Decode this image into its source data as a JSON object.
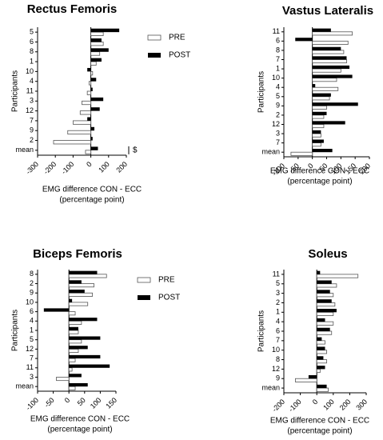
{
  "chart_data": [
    {
      "type": "hbar",
      "title": "Rectus Femoris",
      "ylabel": "Participants",
      "xlabel": [
        "EMG difference CON - ECC",
        "(percentage point)"
      ],
      "categories": [
        "5",
        "6",
        "8",
        "1",
        "10",
        "4",
        "11",
        "3",
        "12",
        "7",
        "9",
        "2",
        "mean"
      ],
      "series": [
        {
          "name": "PRE",
          "color": "#ffffff",
          "values": [
            70,
            70,
            50,
            30,
            10,
            -10,
            -20,
            -50,
            -60,
            -100,
            -130,
            -210,
            -30
          ]
        },
        {
          "name": "POST",
          "color": "#000000",
          "values": [
            160,
            60,
            100,
            60,
            -20,
            30,
            10,
            70,
            50,
            -20,
            20,
            10,
            40
          ]
        }
      ],
      "xlim": [
        -300,
        200
      ],
      "xticks": [
        -300,
        -200,
        -100,
        0,
        100,
        200
      ],
      "legend": "upper right",
      "annotation": "$"
    },
    {
      "type": "hbar",
      "title": "Vastus Lateralis",
      "ylabel": "Participants",
      "xlabel": [
        "EMG difference CON - ECC",
        "(percentage point)"
      ],
      "categories": [
        "11",
        "6",
        "8",
        "7",
        "1",
        "10",
        "4",
        "5",
        "9",
        "2",
        "12",
        "3",
        "7",
        "mean"
      ],
      "series": [
        {
          "name": "PRE",
          "color": "#ffffff",
          "values": [
            140,
            125,
            110,
            120,
            100,
            85,
            90,
            60,
            50,
            40,
            40,
            30,
            30,
            -75
          ]
        },
        {
          "name": "POST",
          "color": "#000000",
          "values": [
            65,
            -60,
            100,
            120,
            130,
            140,
            10,
            65,
            160,
            50,
            115,
            30,
            40,
            70
          ]
        }
      ],
      "xlim": [
        -100,
        200
      ],
      "xticks": [
        -100,
        -50,
        0,
        50,
        100,
        150,
        200
      ]
    },
    {
      "type": "hbar",
      "title": "Biceps Femoris",
      "ylabel": "Participants",
      "xlabel": [
        "EMG difference CON - ECC",
        "(percentage point)"
      ],
      "categories": [
        "8",
        "2",
        "9",
        "10",
        "6",
        "4",
        "1",
        "5",
        "12",
        "7",
        "11",
        "3",
        "mean"
      ],
      "series": [
        {
          "name": "PRE",
          "color": "#ffffff",
          "values": [
            120,
            80,
            75,
            60,
            20,
            40,
            30,
            40,
            30,
            20,
            10,
            -40,
            20
          ]
        },
        {
          "name": "POST",
          "color": "#000000",
          "values": [
            90,
            40,
            50,
            10,
            -80,
            90,
            30,
            100,
            60,
            100,
            130,
            40,
            60
          ]
        }
      ],
      "xlim": [
        -100,
        150
      ],
      "xticks": [
        -100,
        -50,
        0,
        50,
        100,
        150
      ],
      "legend": "upper right"
    },
    {
      "type": "hbar",
      "title": "Soleus",
      "ylabel": "Participants",
      "xlabel": [
        "EMG difference CON - ECC",
        "(percentage point)"
      ],
      "categories": [
        "11",
        "5",
        "3",
        "2",
        "1",
        "4",
        "6",
        "7",
        "10",
        "8",
        "12",
        "9",
        "mean"
      ],
      "series": [
        {
          "name": "PRE",
          "color": "#ffffff",
          "values": [
            250,
            120,
            100,
            110,
            100,
            100,
            90,
            50,
            60,
            60,
            20,
            -130,
            70
          ]
        },
        {
          "name": "POST",
          "color": "#000000",
          "values": [
            20,
            90,
            80,
            90,
            120,
            50,
            80,
            30,
            50,
            40,
            50,
            -50,
            60
          ]
        }
      ],
      "xlim": [
        -200,
        300
      ],
      "xticks": [
        -200,
        -100,
        0,
        100,
        200,
        300
      ]
    }
  ]
}
